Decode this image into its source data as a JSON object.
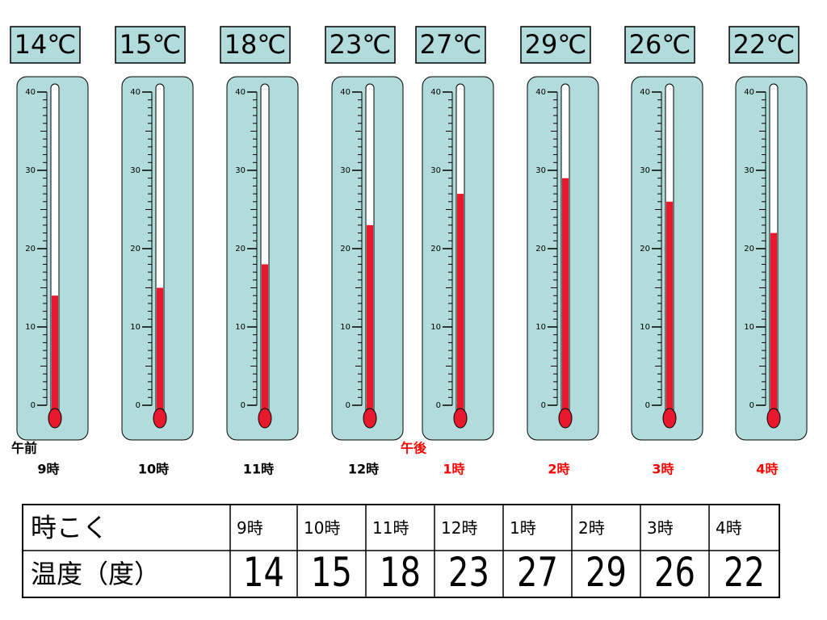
{
  "thermometers": {
    "values": [
      14,
      15,
      18,
      23,
      27,
      29,
      26,
      22
    ],
    "value_labels": [
      "14℃",
      "15℃",
      "18℃",
      "23℃",
      "27℃",
      "29℃",
      "26℃",
      "22℃"
    ],
    "times": [
      "9時",
      "10時",
      "11時",
      "12時",
      "1時",
      "2時",
      "3時",
      "4時"
    ],
    "time_colors": [
      "#000000",
      "#000000",
      "#000000",
      "#000000",
      "#ff0000",
      "#ff0000",
      "#ff0000",
      "#ff0000"
    ],
    "am_label": "午前",
    "pm_label": "午後",
    "ylim": [
      0,
      40
    ],
    "yticks": [
      0,
      10,
      20,
      30,
      40
    ],
    "minor_ticks": [
      1,
      2,
      3,
      4,
      5,
      6,
      7,
      8,
      9,
      11,
      12,
      13,
      14,
      15,
      16,
      17,
      18,
      19,
      21,
      22,
      23,
      24,
      25,
      26,
      27,
      28,
      29,
      31,
      32,
      33,
      34,
      35,
      36,
      37,
      38,
      39
    ],
    "mercury_color": "#e8192c",
    "panel_color": "#b2dcdc"
  },
  "table": {
    "rows": [
      [
        "時こく",
        "9時",
        "10時",
        "11時",
        "12時",
        "1時",
        "2時",
        "3時",
        "4時"
      ],
      [
        "温度（度）",
        14,
        15,
        18,
        23,
        27,
        29,
        26,
        22
      ]
    ]
  }
}
